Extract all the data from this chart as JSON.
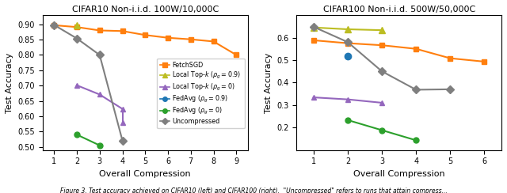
{
  "left": {
    "title": "CIFAR10 Non-i.i.d. 100W/10,000C",
    "xlabel": "Overall Compression",
    "ylabel": "Test Accuracy",
    "xlim": [
      0.5,
      9.5
    ],
    "ylim": [
      0.49,
      0.93
    ],
    "yticks": [
      0.5,
      0.55,
      0.6,
      0.65,
      0.7,
      0.75,
      0.8,
      0.85,
      0.9
    ],
    "xticks": [
      1,
      2,
      3,
      4,
      5,
      6,
      7,
      8,
      9
    ],
    "series": [
      {
        "name": "FetchSGD",
        "x": [
          1,
          2,
          3,
          4,
          5,
          6,
          7,
          8,
          9
        ],
        "y": [
          0.897,
          0.891,
          0.88,
          0.878,
          0.865,
          0.856,
          0.851,
          0.844,
          0.8
        ],
        "color": "#ff7f0e",
        "marker": "s",
        "markersize": 5,
        "linestyle": "-",
        "linewidth": 1.5,
        "zorder": 3
      },
      {
        "name": "LocalTopK_09",
        "x": [
          2
        ],
        "y": [
          0.897
        ],
        "color": "#bcbd22",
        "marker": "^",
        "markersize": 6,
        "linestyle": "-",
        "linewidth": 1.5,
        "zorder": 3
      },
      {
        "name": "LocalTopK_0",
        "x": [
          2,
          3,
          4
        ],
        "y": [
          0.701,
          0.671,
          0.624
        ],
        "color": "#9467bd",
        "marker": "^",
        "markersize": 5,
        "linestyle": "-",
        "linewidth": 1.5,
        "zorder": 3
      },
      {
        "name": "LocalTopK_0_extra",
        "x": [
          4
        ],
        "y": [
          0.58
        ],
        "color": "#9467bd",
        "marker": "^",
        "markersize": 5,
        "linestyle": "none",
        "linewidth": 1.5,
        "zorder": 3
      },
      {
        "name": "FedAvg_0",
        "x": [
          2,
          3
        ],
        "y": [
          0.54,
          0.505
        ],
        "color": "#2ca02c",
        "marker": "o",
        "markersize": 5,
        "linestyle": "-",
        "linewidth": 1.5,
        "zorder": 3
      },
      {
        "name": "Uncompressed",
        "x": [
          1,
          2,
          3,
          4
        ],
        "y": [
          0.898,
          0.854,
          0.8,
          0.521
        ],
        "color": "#7f7f7f",
        "marker": "D",
        "markersize": 5,
        "linestyle": "-",
        "linewidth": 1.5,
        "zorder": 3
      }
    ]
  },
  "right": {
    "title": "CIFAR100 Non-i.i.d. 500W/50,000C",
    "xlabel": "Overall Compression",
    "ylabel": "Test Accuracy",
    "xlim": [
      0.5,
      6.5
    ],
    "ylim": [
      0.1,
      0.7
    ],
    "yticks": [
      0.2,
      0.3,
      0.4,
      0.5,
      0.6
    ],
    "xticks": [
      1,
      2,
      3,
      4,
      5,
      6
    ],
    "series": [
      {
        "name": "FetchSGD",
        "x": [
          1,
          2,
          3,
          4,
          5,
          6
        ],
        "y": [
          0.588,
          0.575,
          0.566,
          0.55,
          0.508,
          0.493
        ],
        "color": "#ff7f0e",
        "marker": "s",
        "markersize": 5,
        "linestyle": "-",
        "linewidth": 1.5,
        "zorder": 3
      },
      {
        "name": "LocalTopK_09",
        "x": [
          1,
          2,
          3
        ],
        "y": [
          0.645,
          0.637,
          0.633
        ],
        "color": "#bcbd22",
        "marker": "^",
        "markersize": 6,
        "linestyle": "-",
        "linewidth": 1.5,
        "zorder": 3
      },
      {
        "name": "LocalTopK_0",
        "x": [
          1,
          2,
          3
        ],
        "y": [
          0.334,
          0.325,
          0.31
        ],
        "color": "#9467bd",
        "marker": "^",
        "markersize": 5,
        "linestyle": "-",
        "linewidth": 1.5,
        "zorder": 3
      },
      {
        "name": "FedAvg_09",
        "x": [
          2
        ],
        "y": [
          0.516
        ],
        "color": "#1f77b4",
        "marker": "o",
        "markersize": 6,
        "linestyle": "none",
        "linewidth": 1.5,
        "zorder": 3
      },
      {
        "name": "FedAvg_0",
        "x": [
          2,
          3,
          4
        ],
        "y": [
          0.233,
          0.188,
          0.143
        ],
        "color": "#2ca02c",
        "marker": "o",
        "markersize": 5,
        "linestyle": "-",
        "linewidth": 1.5,
        "zorder": 3
      },
      {
        "name": "Uncompressed",
        "x": [
          1,
          2,
          3,
          4,
          5
        ],
        "y": [
          0.648,
          0.58,
          0.45,
          0.368,
          0.37
        ],
        "color": "#7f7f7f",
        "marker": "D",
        "markersize": 5,
        "linestyle": "-",
        "linewidth": 1.5,
        "zorder": 3
      }
    ]
  },
  "legend": [
    {
      "label": "FetchSGD",
      "color": "#ff7f0e",
      "marker": "s"
    },
    {
      "label": "Local Top-$k$ ($\\rho_g = 0.9$)",
      "color": "#bcbd22",
      "marker": "^"
    },
    {
      "label": "Local Top-$k$ ($\\rho_g = 0$)",
      "color": "#9467bd",
      "marker": "^"
    },
    {
      "label": "FedAvg ($\\rho_g = 0.9$)",
      "color": "#1f77b4",
      "marker": "o"
    },
    {
      "label": "FedAvg ($\\rho_g = 0$)",
      "color": "#2ca02c",
      "marker": "o"
    },
    {
      "label": "Uncompressed",
      "color": "#7f7f7f",
      "marker": "D"
    }
  ],
  "caption": "Figure 3. Test accuracy achieved on CIFAR10 (left) and CIFAR100 (right).  \"Uncompressed\" refers to runs that attain compress..."
}
